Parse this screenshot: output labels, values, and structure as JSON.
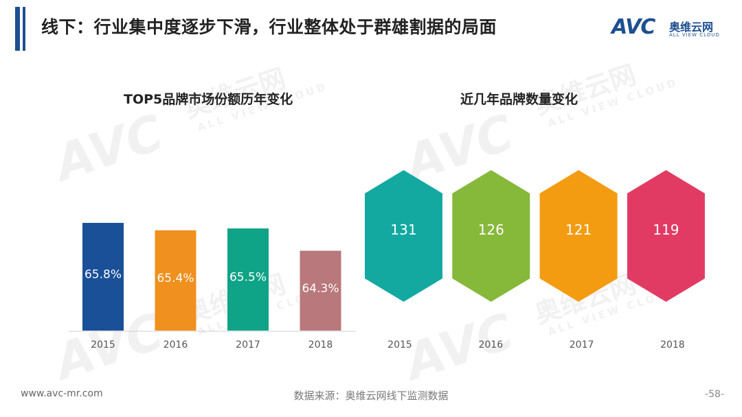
{
  "page": {
    "title": "线下：行业集中度逐步下滑，行业整体处于群雄割据的局面"
  },
  "logo": {
    "letters": "AVC",
    "cn": "奥维云网",
    "en": "ALL VIEW CLOUD"
  },
  "watermark": {
    "letters": "AVC",
    "cn": "奥维云网",
    "en": "ALL VIEW CLOUD"
  },
  "chart_data": [
    {
      "type": "bar",
      "title": "TOP5品牌市场份额历年变化",
      "categories": [
        "2015",
        "2016",
        "2017",
        "2018"
      ],
      "values": [
        65.8,
        65.4,
        65.5,
        64.3
      ],
      "labels": [
        "65.8%",
        "65.4%",
        "65.5%",
        "64.3%"
      ],
      "colors": [
        "#1a5097",
        "#f0901e",
        "#0fa387",
        "#b9787c"
      ],
      "ylim": [
        60.0,
        66.5
      ],
      "xlabel": "",
      "ylabel": ""
    },
    {
      "type": "table",
      "title": "近几年品牌数量变化",
      "categories": [
        "2015",
        "2016",
        "2017",
        "2018"
      ],
      "values": [
        131,
        126,
        121,
        119
      ],
      "colors": [
        "#13a9a1",
        "#86b83a",
        "#f39c12",
        "#e23b63"
      ]
    }
  ],
  "footer": {
    "website": "www.avc-mr.com",
    "source": "数据来源：奥维云网线下监测数据",
    "page_number": "-58-"
  }
}
